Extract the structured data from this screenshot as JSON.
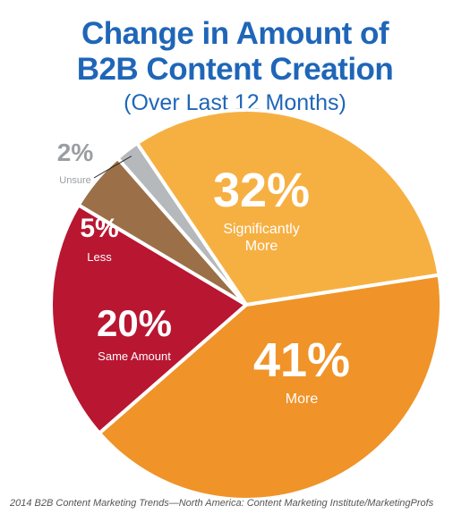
{
  "chart_data": {
    "type": "pie",
    "title": "Change in Amount of B2B Content Creation",
    "subtitle": "(Over Last 12 Months)",
    "source": "2014 B2B Content Marketing Trends—North America: Content Marketing Institute/MarketingProfs",
    "slices": [
      {
        "label": "Significantly More",
        "label_lines": [
          "Significantly",
          "More"
        ],
        "value": 32,
        "value_text": "32%",
        "color": "#f6b042"
      },
      {
        "label": "More",
        "label_lines": [
          "More"
        ],
        "value": 41,
        "value_text": "41%",
        "color": "#f09328"
      },
      {
        "label": "Same Amount",
        "label_lines": [
          "Same Amount"
        ],
        "value": 20,
        "value_text": "20%",
        "color": "#b91631"
      },
      {
        "label": "Less",
        "label_lines": [
          "Less"
        ],
        "value": 5,
        "value_text": "5%",
        "color": "#9b7048"
      },
      {
        "label": "Unsure",
        "label_lines": [
          "Unsure"
        ],
        "value": 2,
        "value_text": "2%",
        "color": "#b6b9bc"
      }
    ],
    "text_color_title": "#1f66b8",
    "text_color_outside": "#9a9ea3"
  }
}
